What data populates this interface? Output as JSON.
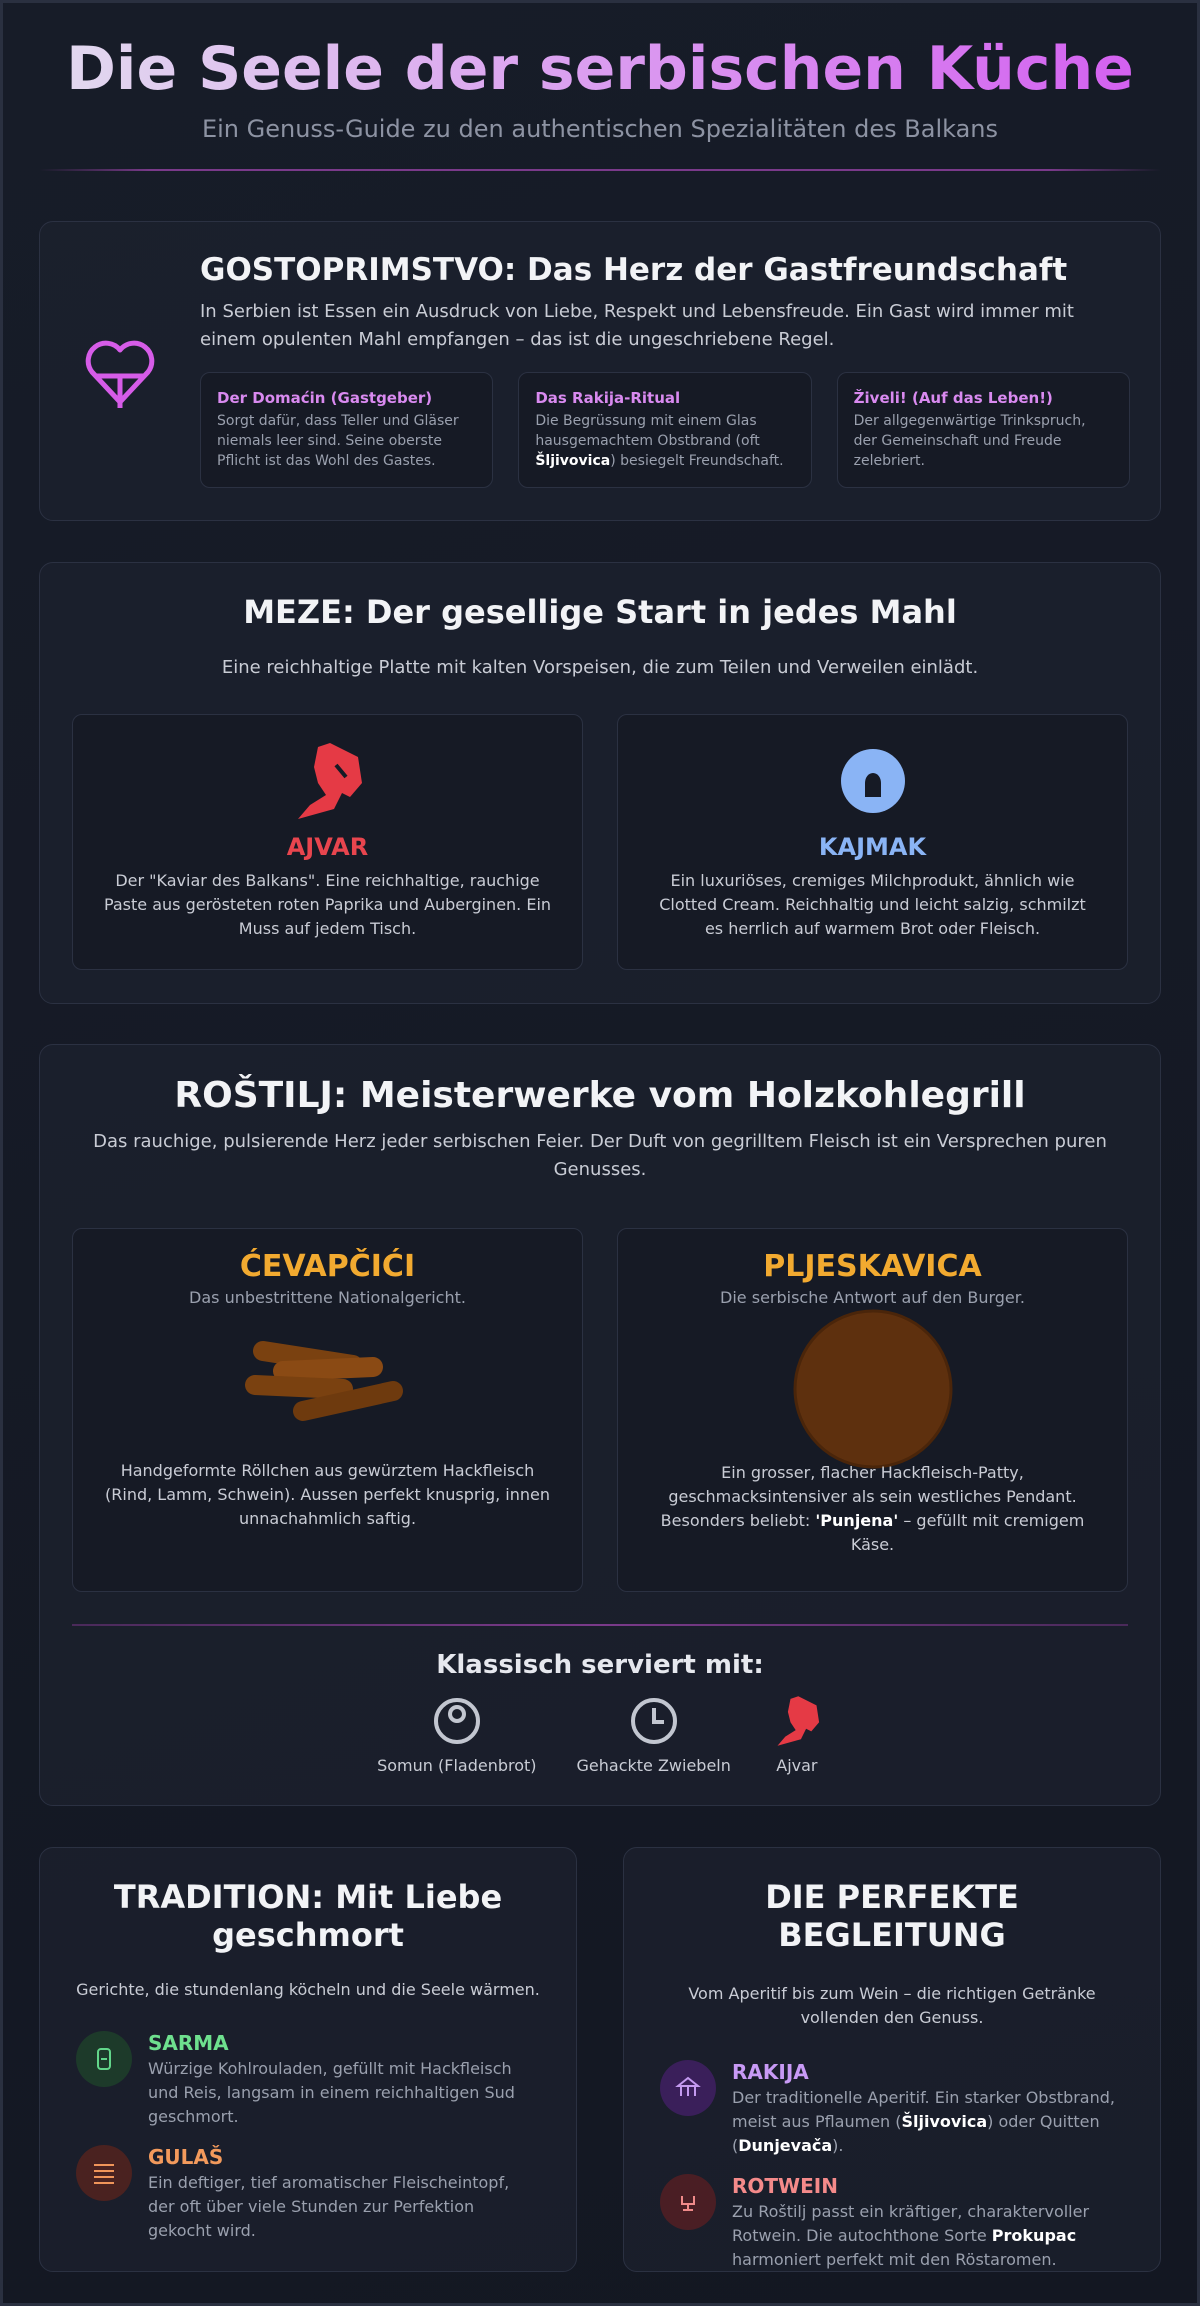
{
  "header": {
    "title": "Die Seele der serbischen Küche",
    "subtitle": "Ein Genuss-Guide zu den authentischen Spezialitäten des Balkans"
  },
  "hospitality": {
    "title": "GOSTOPRIMSTVO: Das Herz der Gastfreundschaft",
    "text": "In Serbien ist Essen ein Ausdruck von Liebe, Respekt und Lebensfreude. Ein Gast wird immer mit einem opulenten Mahl empfangen – das ist die ungeschriebene Regel.",
    "cards": [
      {
        "title": "Der Domaćin (Gastgeber)",
        "text": [
          "Sorgt dafür, dass Teller und Gläser niemals leer sind. Seine oberste Pflicht ist das Wohl des Gastes."
        ]
      },
      {
        "title": "Das Rakija-Ritual",
        "text": [
          "Die Begrüssung mit einem Glas hausgemachtem Obstbrand (oft ",
          "Šljivovica",
          ") besiegelt Freundschaft."
        ]
      },
      {
        "title": "Živeli! (Auf das Leben!)",
        "text": [
          "Der allgegenwärtige Trinkspruch, der Gemeinschaft und Freude zelebriert."
        ]
      }
    ]
  },
  "meze": {
    "title": "MEZE: Der gesellige Start in jedes Mahl",
    "text": "Eine reichhaltige Platte mit kalten Vorspeisen, die zum Teilen und Verweilen einlädt.",
    "items": [
      {
        "name": "AJVAR",
        "text": "Der \"Kaviar des Balkans\". Eine reichhaltige, rauchige Paste aus gerösteten roten Paprika und Auberginen. Ein Muss auf jedem Tisch."
      },
      {
        "name": "KAJMAK",
        "text": "Ein luxuriöses, cremiges Milchprodukt, ähnlich wie Clotted Cream. Reichhaltig und leicht salzig, schmilzt es herrlich auf warmem Brot oder Fleisch."
      }
    ]
  },
  "rostilj": {
    "title": "ROŠTILJ: Meisterwerke vom Holzkohlegrill",
    "text": "Das rauchige, pulsierende Herz jeder serbischen Feier. Der Duft von gegrilltem Fleisch ist ein Versprechen puren Genusses.",
    "items": [
      {
        "name": "ĆEVAPČIĆI",
        "tagline": "Das unbestrittene Nationalgericht.",
        "text": [
          "Handgeformte Röllchen aus gewürztem Hackfleisch (Rind, Lamm, Schwein). Aussen perfekt knusprig, innen unnachahmlich saftig."
        ]
      },
      {
        "name": "PLJESKAVICA",
        "tagline": "Die serbische Antwort auf den Burger.",
        "text": [
          "Ein grosser, flacher Hackfleisch-Patty, geschmacksintensiver als sein westliches Pendant. Besonders beliebt: ",
          "'Punjena'",
          " – gefüllt mit cremigem Käse."
        ]
      }
    ],
    "sides_title": "Klassisch serviert mit:",
    "sides": [
      "Somun (Fladenbrot)",
      "Gehackte Zwiebeln",
      "Ajvar"
    ]
  },
  "tradition": {
    "title": "TRADITION: Mit Liebe geschmort",
    "text": "Gerichte, die stundenlang köcheln und die Seele wärmen.",
    "items": [
      {
        "name": "SARMA",
        "text": [
          "Würzige Kohlrouladen, gefüllt mit Hackfleisch und Reis, langsam in einem reichhaltigen Sud geschmort."
        ]
      },
      {
        "name": "GULAŠ",
        "text": [
          "Ein deftiger, tief aromatischer Fleischeintopf, der oft über viele Stunden zur Perfektion gekocht wird."
        ]
      }
    ]
  },
  "drinks": {
    "title": "DIE PERFEKTE BEGLEITUNG",
    "text": "Vom Aperitif bis zum Wein – die richtigen Getränke vollenden den Genuss.",
    "items": [
      {
        "name": "RAKIJA",
        "text": [
          "Der traditionelle Aperitif. Ein starker Obstbrand, meist aus Pflaumen (",
          "Šljivovica",
          ") oder Quitten (",
          "Dunjevača",
          ")."
        ]
      },
      {
        "name": "ROTWEIN",
        "text": [
          "Zu Roštilj passt ein kräftiger, charaktervoller Rotwein. Die autochthone Sorte ",
          "Prokupac",
          " harmoniert perfekt mit den Röstaromen."
        ]
      }
    ]
  }
}
